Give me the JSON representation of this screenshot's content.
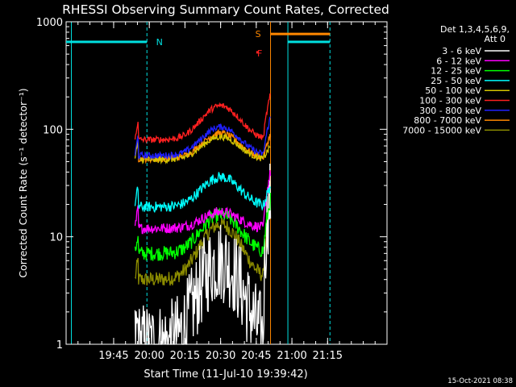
{
  "chart_data": {
    "type": "line",
    "title": "RHESSI Observing Summary Count Rates, Corrected",
    "xlabel": "Start Time (11-Jul-10 19:39:42)",
    "ylabel": "Corrected Count Rate (s⁻¹ detector⁻¹)",
    "yscale": "log",
    "ylim": [
      1,
      1000
    ],
    "xlim_minutes": [
      -35,
      100
    ],
    "x_ticks": [
      {
        "t": -15,
        "label": "19:45"
      },
      {
        "t": 0,
        "label": "20:00"
      },
      {
        "t": 15,
        "label": "20:15"
      },
      {
        "t": 30,
        "label": "20:30"
      },
      {
        "t": 45,
        "label": "20:45"
      },
      {
        "t": 60,
        "label": "21:00"
      },
      {
        "t": 75,
        "label": "21:15"
      }
    ],
    "y_ticks": [
      {
        "v": 1,
        "label": "1"
      },
      {
        "v": 10,
        "label": "10"
      },
      {
        "v": 100,
        "label": "100"
      },
      {
        "v": 1000,
        "label": "1000"
      }
    ],
    "legend_header": [
      "Det 1,3,4,5,6,9,",
      "Att 0"
    ],
    "data_start_t": -6,
    "data_end_t": 51,
    "series": [
      {
        "name": "3 - 6 keV",
        "color": "#ffffff",
        "base": 1.0,
        "peak": 6,
        "noise": 0.18,
        "jump": 25
      },
      {
        "name": "6 - 12 keV",
        "color": "#ff00ff",
        "base": 12,
        "peak": 17,
        "noise": 0.05,
        "jump": 40
      },
      {
        "name": "12 - 25 keV",
        "color": "#00ff00",
        "base": 7,
        "peak": 16,
        "noise": 0.07,
        "jump": 22
      },
      {
        "name": "25 - 50 keV",
        "color": "#00ffff",
        "base": 19,
        "peak": 36,
        "noise": 0.05,
        "jump": 30
      },
      {
        "name": "50 - 100 keV",
        "color": "#d4c400",
        "base": 52,
        "peak": 85,
        "noise": 0.03,
        "jump": 70
      },
      {
        "name": "100 - 300 keV",
        "color": "#ff2020",
        "base": 80,
        "peak": 165,
        "noise": 0.03,
        "jump": 210
      },
      {
        "name": "300 - 800 keV",
        "color": "#2020ff",
        "base": 57,
        "peak": 105,
        "noise": 0.03,
        "jump": 130
      },
      {
        "name": "800 - 7000 keV",
        "color": "#ff8800",
        "base": 53,
        "peak": 92,
        "noise": 0.03,
        "jump": 90
      },
      {
        "name": "7000 - 15000 keV",
        "color": "#8b8b00",
        "base": 4,
        "peak": 13,
        "noise": 0.07,
        "jump": 20
      }
    ],
    "annotations": [
      {
        "label": "N",
        "color": "#00e0e0",
        "t": 0.5
      },
      {
        "label": "S",
        "color": "#ff8800",
        "t": 49
      },
      {
        "label": "F",
        "color": "#ff2020",
        "t": 43
      }
    ],
    "vertical_lines": [
      {
        "t": -32.8,
        "color": "#00e0e0",
        "style": "solid"
      },
      {
        "t": -1,
        "color": "#00e0e0",
        "style": "dashed"
      },
      {
        "t": 51,
        "color": "#ff8800",
        "style": "solid"
      },
      {
        "t": 58.3,
        "color": "#00e0e0",
        "style": "solid"
      },
      {
        "t": 76,
        "color": "#00e0e0",
        "style": "dashed"
      }
    ],
    "bars": [
      {
        "t0": -35,
        "t1": -1,
        "value": 650,
        "color": "#00e0e0"
      },
      {
        "t0": 51,
        "t1": 76,
        "value": 770,
        "color": "#ff8800"
      },
      {
        "t0": 58.3,
        "t1": 76,
        "value": 650,
        "color": "#00e0e0"
      },
      {
        "t0": 45,
        "t1": 46,
        "value": 520,
        "color": "#ff2020"
      }
    ]
  },
  "footer": {
    "timestamp": "15-Oct-2021 08:38"
  }
}
